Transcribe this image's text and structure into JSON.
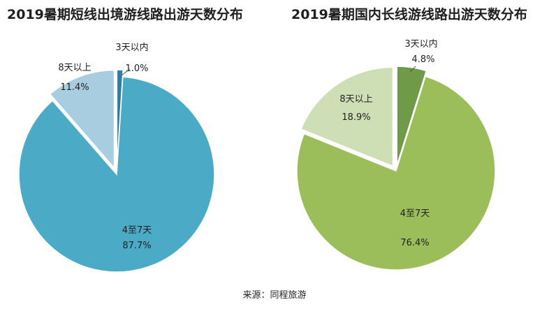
{
  "chart_data": [
    {
      "type": "pie",
      "title": "2019暑期短线出境游线路出游天数分布",
      "slices": [
        {
          "label": "3天以内",
          "value": 1.0,
          "display": "1.0%",
          "color": "#2f7ea0"
        },
        {
          "label": "4至7天",
          "value": 87.7,
          "display": "87.7%",
          "color": "#4babc7"
        },
        {
          "label": "8天以上",
          "value": 11.4,
          "display": "11.4%",
          "color": "#a8cde0"
        }
      ]
    },
    {
      "type": "pie",
      "title": "2019暑期国内长线游线路出游天数分布",
      "slices": [
        {
          "label": "3天以内",
          "value": 4.8,
          "display": "4.8%",
          "color": "#6f9a48"
        },
        {
          "label": "4至7天",
          "value": 76.4,
          "display": "76.4%",
          "color": "#9bbe5b"
        },
        {
          "label": "8天以上",
          "value": 18.9,
          "display": "18.9%",
          "color": "#cfdfb5"
        }
      ]
    }
  ],
  "source": "来源：同程旅游"
}
